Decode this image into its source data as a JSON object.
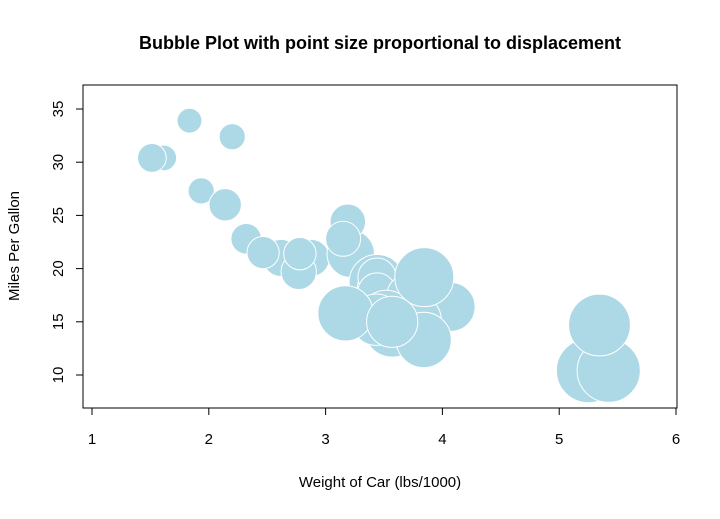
{
  "chart_data": {
    "type": "scatter",
    "title": "Bubble Plot with point size proportional to displacement",
    "xlabel": "Weight of Car (lbs/1000)",
    "ylabel": "Miles Per Gallon",
    "xlim": [
      1,
      6
    ],
    "ylim": [
      10,
      35
    ],
    "xticks": [
      "1",
      "2",
      "3",
      "4",
      "5",
      "6"
    ],
    "yticks": [
      "10",
      "15",
      "20",
      "25",
      "30",
      "35"
    ],
    "grid": false,
    "legend": "none",
    "size_variable": "displacement",
    "colors": {
      "fill": "#add8e6",
      "stroke": "#ffffff"
    },
    "series": [
      {
        "x": [
          2.62,
          2.875,
          2.32,
          3.215,
          3.44,
          3.46,
          3.57,
          3.19,
          3.15,
          3.44,
          3.44,
          4.07,
          3.73,
          3.78,
          5.25,
          5.424,
          5.345,
          2.2,
          1.615,
          1.835,
          2.465,
          3.52,
          3.435,
          3.84,
          3.845,
          1.935,
          2.14,
          1.513,
          3.17,
          2.77,
          3.57,
          2.78
        ],
        "y": [
          21.0,
          21.0,
          22.8,
          21.4,
          18.7,
          18.1,
          14.3,
          24.4,
          22.8,
          19.2,
          17.8,
          16.4,
          17.3,
          15.2,
          10.4,
          10.4,
          14.7,
          32.4,
          30.4,
          33.9,
          21.5,
          15.5,
          15.2,
          13.3,
          19.2,
          27.3,
          26.0,
          30.4,
          15.8,
          19.7,
          15.0,
          21.4
        ],
        "displacement": [
          160,
          160,
          108,
          258,
          360,
          225,
          360,
          146.7,
          140.8,
          167.6,
          167.6,
          275.8,
          275.8,
          275.8,
          472,
          460,
          440,
          78.7,
          75.7,
          71.1,
          120.1,
          318,
          304,
          350,
          400,
          79,
          120.3,
          95.1,
          351,
          145,
          301,
          121
        ]
      }
    ]
  }
}
